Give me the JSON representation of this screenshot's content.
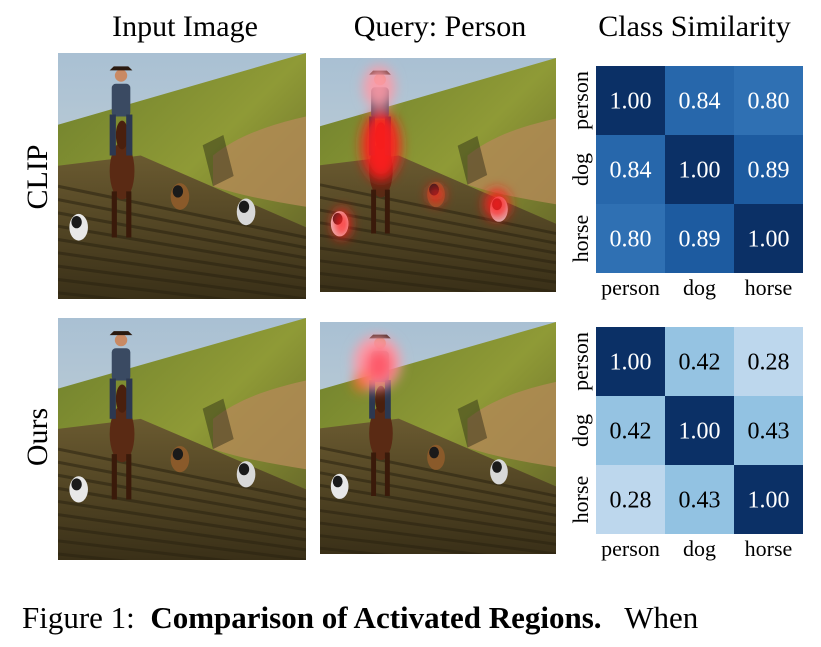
{
  "columns": {
    "input": "Input Image",
    "query": "Query: Person",
    "similarity": "Class Similarity"
  },
  "rows": [
    {
      "label": "CLIP",
      "matrix": [
        [
          1.0,
          0.84,
          0.8
        ],
        [
          0.84,
          1.0,
          0.89
        ],
        [
          0.8,
          0.89,
          1.0
        ]
      ],
      "matrix_text": [
        [
          "1.00",
          "0.84",
          "0.80"
        ],
        [
          "0.84",
          "1.00",
          "0.89"
        ],
        [
          "0.80",
          "0.89",
          "1.00"
        ]
      ]
    },
    {
      "label": "Ours",
      "matrix": [
        [
          1.0,
          0.42,
          0.28
        ],
        [
          0.42,
          1.0,
          0.43
        ],
        [
          0.28,
          0.43,
          1.0
        ]
      ],
      "matrix_text": [
        [
          "1.00",
          "0.42",
          "0.28"
        ],
        [
          "0.42",
          "1.00",
          "0.43"
        ],
        [
          "0.28",
          "0.43",
          "1.00"
        ]
      ]
    }
  ],
  "classes": [
    "person",
    "dog",
    "horse"
  ],
  "caption": {
    "prefix": "Figure 1:",
    "bold": "Comparison of Activated Regions.",
    "suffix": "When"
  },
  "colors": {
    "dark_blue": "#0b3066",
    "mid_blue": "#2f70b3",
    "light_blue": "#c3dcef",
    "activation_red": "#ff2020",
    "activation_pink": "#ff9aa6"
  }
}
